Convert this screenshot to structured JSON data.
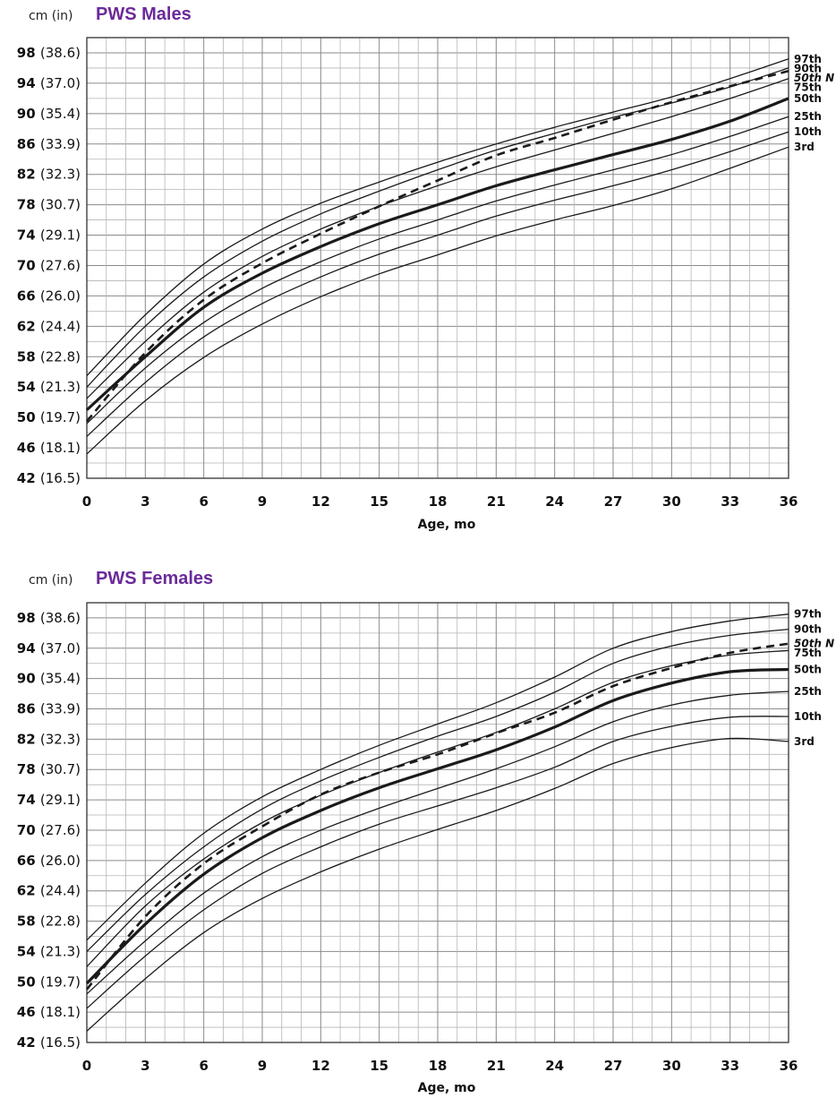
{
  "chart_data": [
    {
      "type": "line",
      "title": "PWS Males",
      "unit_label": "cm (in)",
      "xlabel": "Age, mo",
      "xlim": [
        0,
        36
      ],
      "ylim": [
        42,
        100
      ],
      "x_ticks": [
        "0",
        "3",
        "6",
        "9",
        "12",
        "15",
        "18",
        "21",
        "24",
        "27",
        "30",
        "33",
        "36"
      ],
      "y_ticks": [
        {
          "cm": "98",
          "in": "(38.6)"
        },
        {
          "cm": "94",
          "in": "(37.0)"
        },
        {
          "cm": "90",
          "in": "(35.4)"
        },
        {
          "cm": "86",
          "in": "(33.9)"
        },
        {
          "cm": "82",
          "in": "(32.3)"
        },
        {
          "cm": "78",
          "in": "(30.7)"
        },
        {
          "cm": "74",
          "in": "(29.1)"
        },
        {
          "cm": "70",
          "in": "(27.6)"
        },
        {
          "cm": "66",
          "in": "(26.0)"
        },
        {
          "cm": "62",
          "in": "(24.4)"
        },
        {
          "cm": "58",
          "in": "(22.8)"
        },
        {
          "cm": "54",
          "in": "(21.3)"
        },
        {
          "cm": "50",
          "in": "(19.7)"
        },
        {
          "cm": "46",
          "in": "(18.1)"
        },
        {
          "cm": "42",
          "in": "(16.5)"
        }
      ],
      "grid": true,
      "x": [
        0,
        3,
        6,
        9,
        12,
        15,
        18,
        21,
        24,
        27,
        30,
        33,
        36
      ],
      "series": [
        {
          "name": "97th",
          "style": "thin",
          "values": [
            55.5,
            63.5,
            70.2,
            74.8,
            78.2,
            81.0,
            83.6,
            86.0,
            88.2,
            90.2,
            92.2,
            94.6,
            97.2
          ]
        },
        {
          "name": "50th N",
          "style": "dashed",
          "values": [
            49.5,
            58.5,
            65.5,
            70.3,
            74.2,
            77.8,
            81.2,
            84.5,
            86.8,
            89.2,
            91.5,
            93.6,
            95.6
          ]
        },
        {
          "name": "90th",
          "style": "thin",
          "values": [
            54.0,
            62.0,
            68.5,
            73.2,
            76.8,
            79.8,
            82.6,
            85.2,
            87.4,
            89.5,
            91.4,
            93.5,
            96.0
          ]
        },
        {
          "name": "75th",
          "style": "thin",
          "values": [
            52.5,
            60.0,
            66.5,
            71.2,
            74.8,
            77.8,
            80.5,
            83.0,
            85.2,
            87.4,
            89.6,
            92.0,
            94.6
          ]
        },
        {
          "name": "50th",
          "style": "thick",
          "values": [
            51.0,
            58.0,
            64.5,
            69.0,
            72.5,
            75.5,
            78.0,
            80.5,
            82.6,
            84.6,
            86.6,
            89.0,
            92.0
          ]
        },
        {
          "name": "25th",
          "style": "thin",
          "values": [
            49.2,
            56.5,
            62.5,
            67.0,
            70.5,
            73.5,
            76.0,
            78.5,
            80.6,
            82.6,
            84.6,
            87.0,
            89.6
          ]
        },
        {
          "name": "10th",
          "style": "thin",
          "values": [
            47.5,
            54.6,
            60.6,
            65.0,
            68.5,
            71.5,
            74.0,
            76.5,
            78.6,
            80.5,
            82.6,
            85.0,
            87.6
          ]
        },
        {
          "name": "3rd",
          "style": "thin",
          "values": [
            45.2,
            52.2,
            57.9,
            62.3,
            65.9,
            68.9,
            71.4,
            73.9,
            76.0,
            77.9,
            80.1,
            82.8,
            85.6
          ]
        }
      ]
    },
    {
      "type": "line",
      "title": "PWS Females",
      "unit_label": "cm (in)",
      "xlabel": "Age, mo",
      "xlim": [
        0,
        36
      ],
      "ylim": [
        42,
        100
      ],
      "x_ticks": [
        "0",
        "3",
        "6",
        "9",
        "12",
        "15",
        "18",
        "21",
        "24",
        "27",
        "30",
        "33",
        "36"
      ],
      "y_ticks": [
        {
          "cm": "98",
          "in": "(38.6)"
        },
        {
          "cm": "94",
          "in": "(37.0)"
        },
        {
          "cm": "90",
          "in": "(35.4)"
        },
        {
          "cm": "86",
          "in": "(33.9)"
        },
        {
          "cm": "82",
          "in": "(32.3)"
        },
        {
          "cm": "78",
          "in": "(30.7)"
        },
        {
          "cm": "74",
          "in": "(29.1)"
        },
        {
          "cm": "70",
          "in": "(27.6)"
        },
        {
          "cm": "66",
          "in": "(26.0)"
        },
        {
          "cm": "62",
          "in": "(24.4)"
        },
        {
          "cm": "58",
          "in": "(22.8)"
        },
        {
          "cm": "54",
          "in": "(21.3)"
        },
        {
          "cm": "50",
          "in": "(19.7)"
        },
        {
          "cm": "46",
          "in": "(18.1)"
        },
        {
          "cm": "42",
          "in": "(16.5)"
        }
      ],
      "grid": true,
      "x": [
        0,
        3,
        6,
        9,
        12,
        15,
        18,
        21,
        24,
        27,
        30,
        33,
        36
      ],
      "series": [
        {
          "name": "97th",
          "style": "thin",
          "values": [
            55.5,
            63.0,
            69.6,
            74.4,
            78.0,
            81.2,
            84.0,
            86.8,
            90.2,
            94.0,
            96.2,
            97.6,
            98.5
          ]
        },
        {
          "name": "90th",
          "style": "thin",
          "values": [
            54.0,
            61.5,
            67.8,
            72.8,
            76.5,
            79.6,
            82.4,
            85.0,
            88.2,
            92.0,
            94.3,
            95.7,
            96.5
          ]
        },
        {
          "name": "50th N",
          "style": "dashed",
          "values": [
            49.0,
            58.6,
            65.6,
            70.5,
            74.7,
            77.6,
            80.0,
            82.8,
            85.5,
            89.0,
            91.4,
            93.4,
            94.6
          ]
        },
        {
          "name": "75th",
          "style": "thin",
          "values": [
            52.0,
            60.0,
            66.2,
            71.0,
            74.6,
            77.6,
            80.3,
            82.9,
            86.0,
            89.5,
            91.7,
            93.1,
            93.7
          ]
        },
        {
          "name": "50th",
          "style": "thick",
          "values": [
            49.8,
            57.6,
            64.2,
            69.0,
            72.6,
            75.6,
            78.1,
            80.6,
            83.6,
            87.1,
            89.4,
            90.9,
            91.2
          ]
        },
        {
          "name": "25th",
          "style": "thin",
          "values": [
            48.4,
            55.4,
            61.7,
            66.5,
            70.0,
            72.9,
            75.5,
            78.1,
            81.0,
            84.3,
            86.5,
            87.8,
            88.3
          ]
        },
        {
          "name": "10th",
          "style": "thin",
          "values": [
            46.5,
            53.4,
            59.5,
            64.3,
            67.8,
            70.8,
            73.2,
            75.6,
            78.3,
            81.7,
            83.7,
            84.9,
            85.0
          ]
        },
        {
          "name": "3rd",
          "style": "thin",
          "values": [
            43.5,
            50.4,
            56.5,
            61.0,
            64.5,
            67.5,
            70.1,
            72.6,
            75.5,
            78.8,
            80.9,
            82.1,
            81.7
          ]
        }
      ]
    }
  ]
}
